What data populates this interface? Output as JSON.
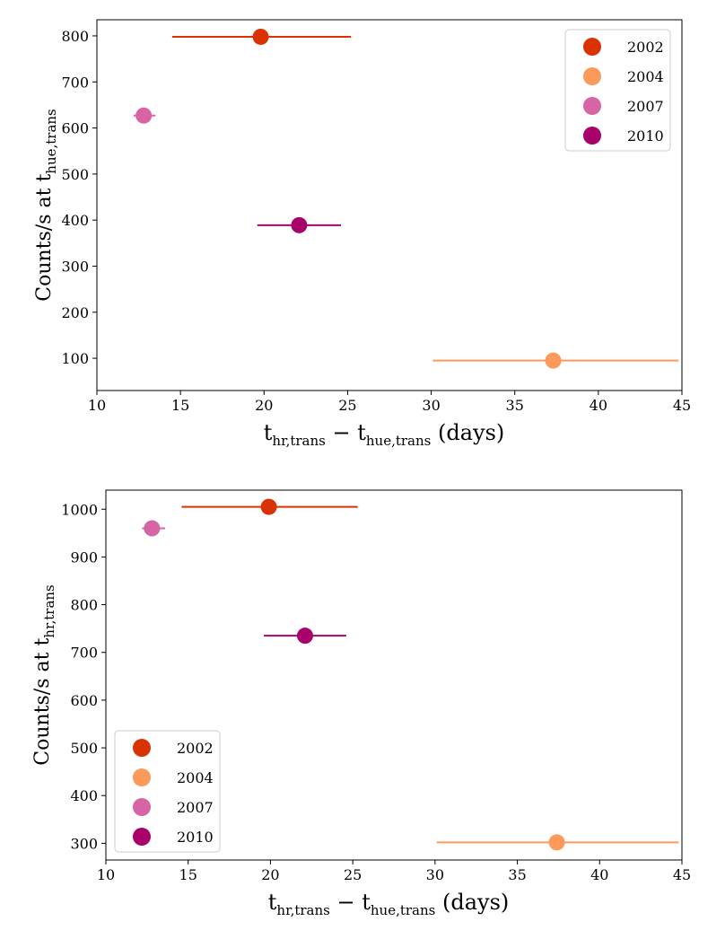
{
  "chart_data": [
    {
      "type": "scatter",
      "xlabel": {
        "main": "t",
        "sub1": "hr,trans",
        "mid": " − t",
        "sub2": "hue,trans",
        "tail": " (days)"
      },
      "ylabel": {
        "main": "Counts/s at t",
        "sub": "hue,trans"
      },
      "xlim": [
        10,
        45
      ],
      "ylim": [
        30,
        835
      ],
      "xticks": [
        10,
        15,
        20,
        25,
        30,
        35,
        40,
        45
      ],
      "yticks": [
        100,
        200,
        300,
        400,
        500,
        600,
        700,
        800
      ],
      "legend_position": "upper right",
      "series": [
        {
          "name": "2002",
          "color": "#d93304",
          "x": 19.8,
          "y": 798,
          "xerr_low": 14.5,
          "xerr_high": 25.2
        },
        {
          "name": "2004",
          "color": "#fb9a5a",
          "x": 37.3,
          "y": 95,
          "xerr_low": 30.1,
          "xerr_high": 44.8
        },
        {
          "name": "2007",
          "color": "#d765a6",
          "x": 12.8,
          "y": 627,
          "xerr_low": 12.2,
          "xerr_high": 13.5
        },
        {
          "name": "2010",
          "color": "#a8036b",
          "x": 22.1,
          "y": 389,
          "xerr_low": 19.6,
          "xerr_high": 24.6
        }
      ]
    },
    {
      "type": "scatter",
      "xlabel": {
        "main": "t",
        "sub1": "hr,trans",
        "mid": " − t",
        "sub2": "hue,trans",
        "tail": " (days)"
      },
      "ylabel": {
        "main": "Counts/s at t",
        "sub": "hr,trans"
      },
      "xlim": [
        10,
        45
      ],
      "ylim": [
        265,
        1040
      ],
      "xticks": [
        10,
        15,
        20,
        25,
        30,
        35,
        40,
        45
      ],
      "yticks": [
        300,
        400,
        500,
        600,
        700,
        800,
        900,
        1000
      ],
      "legend_position": "lower left",
      "series": [
        {
          "name": "2002",
          "color": "#d93304",
          "x": 19.9,
          "y": 1005,
          "xerr_low": 14.6,
          "xerr_high": 25.3
        },
        {
          "name": "2004",
          "color": "#fb9a5a",
          "x": 37.4,
          "y": 302,
          "xerr_low": 30.1,
          "xerr_high": 44.8
        },
        {
          "name": "2007",
          "color": "#d765a6",
          "x": 12.8,
          "y": 960,
          "xerr_low": 12.2,
          "xerr_high": 13.6
        },
        {
          "name": "2010",
          "color": "#a8036b",
          "x": 22.1,
          "y": 735,
          "xerr_low": 19.6,
          "xerr_high": 24.6
        }
      ]
    }
  ]
}
